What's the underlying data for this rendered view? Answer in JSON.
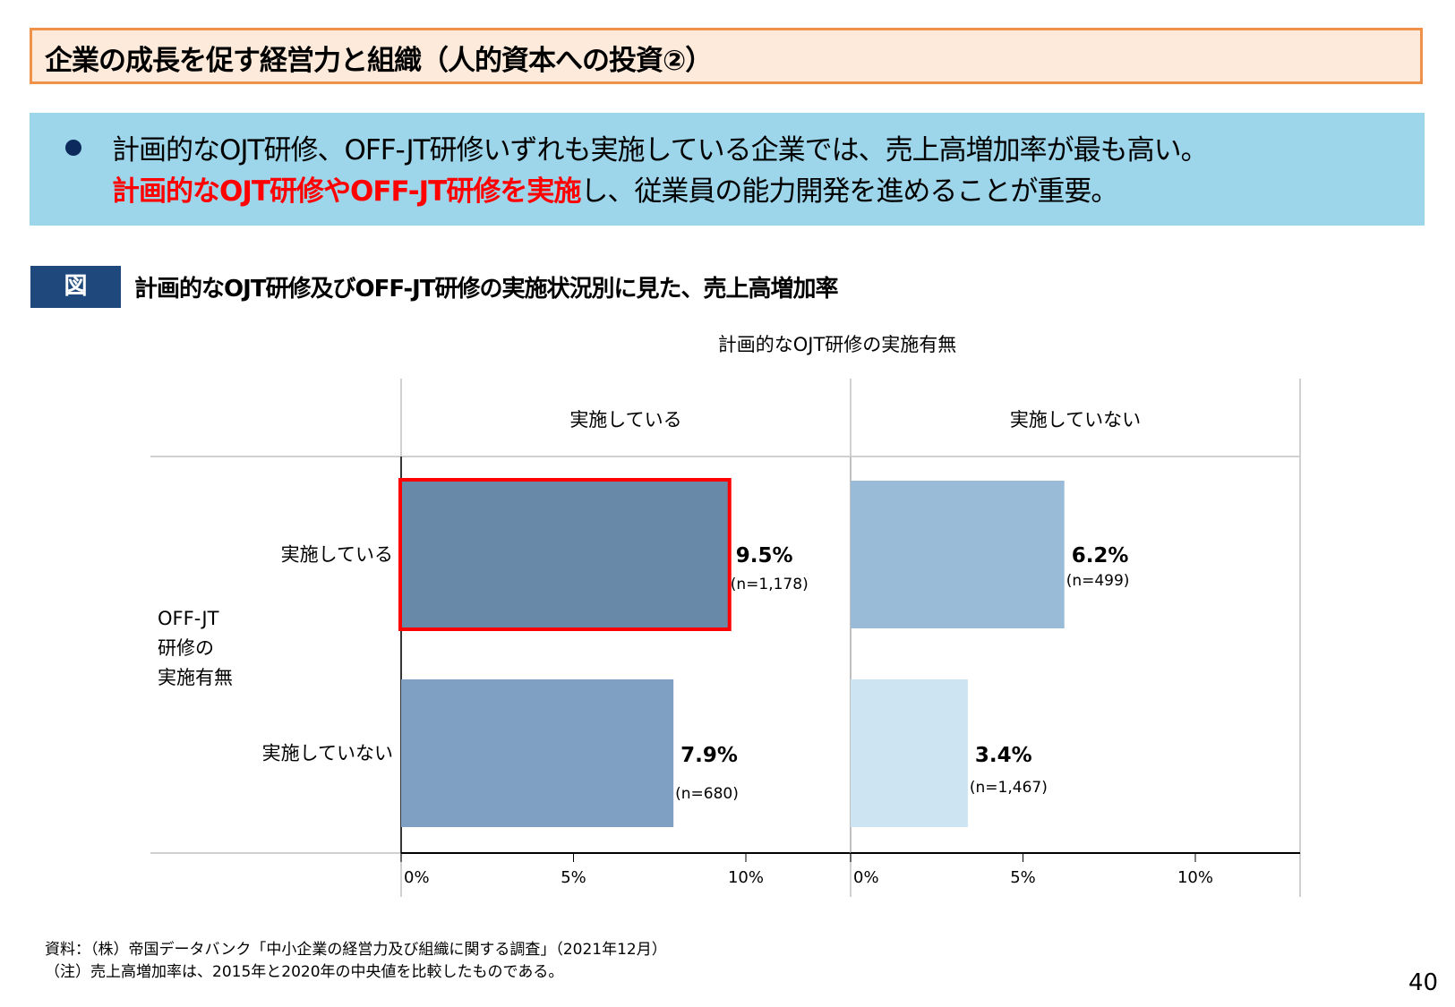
{
  "header": {
    "title": "企業の成長を促す経営力と組織（人的資本への投資②）"
  },
  "summary": {
    "line1": "計画的なOJT研修、OFF-JT研修いずれも実施している企業では、売上高増加率が最も高い。",
    "line2_highlight": "計画的なOJT研修やOFF-JT研修を実施",
    "line2_rest": "し、従業員の能力開発を進めることが重要。"
  },
  "figure": {
    "badge": "図",
    "title": "計画的なOJT研修及びOFF-JT研修の実施状況別に見た、売上高増加率"
  },
  "chart_data": {
    "type": "bar",
    "orientation": "horizontal",
    "column_axis_title": "計画的なOJT研修の実施有無",
    "row_axis_title": [
      "OFF-JT",
      "研修の",
      "実施有無"
    ],
    "columns": [
      "実施している",
      "実施していない"
    ],
    "rows": [
      "実施している",
      "実施していない"
    ],
    "cells": [
      {
        "column": "実施している",
        "row": "実施している",
        "value": 9.5,
        "label": "9.5%",
        "n_label": "(n=1,178)",
        "color": "#6889a8",
        "highlighted": true
      },
      {
        "column": "実施している",
        "row": "実施していない",
        "value": 7.9,
        "label": "7.9%",
        "n_label": "(n=680)",
        "color": "#7fa0c3",
        "highlighted": false
      },
      {
        "column": "実施していない",
        "row": "実施している",
        "value": 6.2,
        "label": "6.2%",
        "n_label": "(n=499)",
        "color": "#9abbd8",
        "highlighted": false
      },
      {
        "column": "実施していない",
        "row": "実施していない",
        "value": 3.4,
        "label": "3.4%",
        "n_label": "(n=1,467)",
        "color": "#cde4f3",
        "highlighted": false
      }
    ],
    "xlim": [
      0,
      13
    ],
    "xticks": [
      0,
      5,
      10
    ],
    "xtick_labels": [
      "0%",
      "5%",
      "10%"
    ],
    "highlight_color": "#ff0000"
  },
  "footer": {
    "source": "資料：（株）帝国データバンク「中小企業の経営力及び組織に関する調査」（2021年12月）",
    "note": "（注）売上高増加率は、2015年と2020年の中央値を比較したものである。",
    "page": "40"
  }
}
